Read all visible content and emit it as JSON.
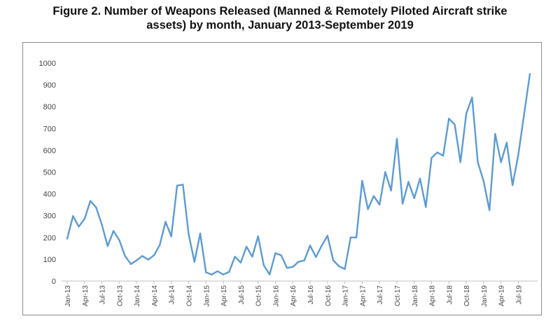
{
  "title_line1": "Figure 2. Number of Weapons Released (Manned & Remotely Piloted Aircraft strike",
  "title_line2": "assets) by month, January 2013-September 2019",
  "colors": {
    "line": "#5b9bd5",
    "axis": "#bfbfbf",
    "frame": "#8a8a8a",
    "text": "#444444"
  },
  "chart_data": {
    "type": "line",
    "title": "Figure 2. Number of Weapons Released (Manned & Remotely Piloted Aircraft strike assets) by month, January 2013-September 2019",
    "xlabel": "",
    "ylabel": "",
    "ylim": [
      0,
      1000
    ],
    "yticks": [
      0,
      100,
      200,
      300,
      400,
      500,
      600,
      700,
      800,
      900,
      1000
    ],
    "grid": false,
    "legend": "none",
    "categories": [
      "Jan-13",
      "Feb-13",
      "Mar-13",
      "Apr-13",
      "May-13",
      "Jun-13",
      "Jul-13",
      "Aug-13",
      "Sep-13",
      "Oct-13",
      "Nov-13",
      "Dec-13",
      "Jan-14",
      "Feb-14",
      "Mar-14",
      "Apr-14",
      "May-14",
      "Jun-14",
      "Jul-14",
      "Aug-14",
      "Sep-14",
      "Oct-14",
      "Nov-14",
      "Dec-14",
      "Jan-15",
      "Feb-15",
      "Mar-15",
      "Apr-15",
      "May-15",
      "Jun-15",
      "Jul-15",
      "Aug-15",
      "Sep-15",
      "Oct-15",
      "Nov-15",
      "Dec-15",
      "Jan-16",
      "Feb-16",
      "Mar-16",
      "Apr-16",
      "May-16",
      "Jun-16",
      "Jul-16",
      "Aug-16",
      "Sep-16",
      "Oct-16",
      "Nov-16",
      "Dec-16",
      "Jan-17",
      "Feb-17",
      "Mar-17",
      "Apr-17",
      "May-17",
      "Jun-17",
      "Jul-17",
      "Aug-17",
      "Sep-17",
      "Oct-17",
      "Nov-17",
      "Dec-17",
      "Jan-18",
      "Feb-18",
      "Mar-18",
      "Apr-18",
      "May-18",
      "Jun-18",
      "Jul-18",
      "Aug-18",
      "Sep-18",
      "Oct-18",
      "Nov-18",
      "Dec-18",
      "Jan-19",
      "Feb-19",
      "Mar-19",
      "Apr-19",
      "May-19",
      "Jun-19",
      "Jul-19",
      "Aug-19",
      "Sep-19"
    ],
    "tick_labels": [
      "Jan-13",
      "Apr-13",
      "Jul-13",
      "Oct-13",
      "Jan-14",
      "Apr-14",
      "Jul-14",
      "Oct-14",
      "Jan-15",
      "Apr-15",
      "Jul-15",
      "Oct-15",
      "Jan-16",
      "Apr-16",
      "Jul-16",
      "Oct-16",
      "Jan-17",
      "Apr-17",
      "Jul-17",
      "Oct-17",
      "Jan-18",
      "Apr-18",
      "Jul-18",
      "Oct-18",
      "Jan-19",
      "Apr-19",
      "Jul-19"
    ],
    "series": [
      {
        "name": "Weapons Released",
        "values": [
          195,
          298,
          250,
          285,
          368,
          338,
          258,
          160,
          230,
          188,
          115,
          78,
          95,
          115,
          98,
          118,
          165,
          272,
          205,
          438,
          442,
          215,
          88,
          218,
          40,
          30,
          45,
          30,
          42,
          112,
          85,
          158,
          112,
          205,
          72,
          30,
          128,
          118,
          60,
          65,
          88,
          95,
          163,
          110,
          162,
          208,
          95,
          68,
          55,
          200,
          200,
          460,
          330,
          390,
          350,
          500,
          415,
          653,
          355,
          455,
          380,
          470,
          340,
          565,
          590,
          575,
          745,
          718,
          545,
          768,
          842,
          545,
          458,
          325,
          675,
          545,
          635,
          440,
          580,
          765,
          950
        ]
      }
    ]
  }
}
